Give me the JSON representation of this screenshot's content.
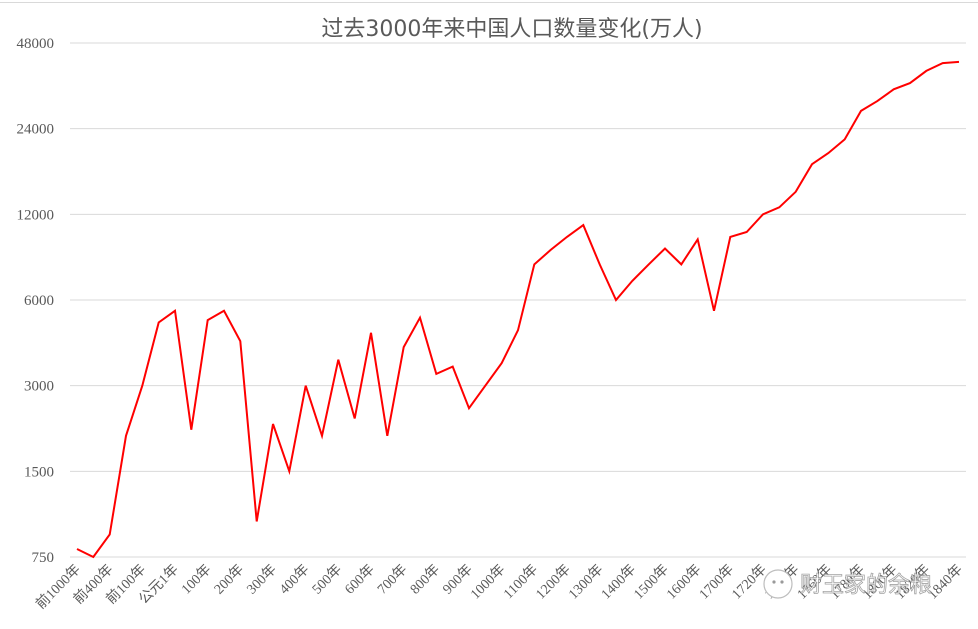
{
  "chart_data": {
    "type": "line",
    "title": "过去3000年来中国人口数量变化(万人)",
    "xlabel": "",
    "ylabel": "",
    "yscale": "log2",
    "ylim": [
      750,
      48000
    ],
    "yticks": [
      "48000",
      "24000",
      "12000",
      "6000",
      "3000",
      "1500",
      "750"
    ],
    "yticks_values": [
      48000,
      24000,
      12000,
      6000,
      3000,
      1500,
      750
    ],
    "grid": true,
    "legend": "none",
    "series_color": "#ff0000",
    "categories": [
      "前1000年",
      "",
      "前400年",
      "",
      "前100年",
      "",
      "公元1年",
      "",
      "100年",
      "",
      "200年",
      "",
      "300年",
      "",
      "400年",
      "",
      "500年",
      "",
      "600年",
      "",
      "700年",
      "",
      "800年",
      "",
      "900年",
      "",
      "1000年",
      "",
      "1100年",
      "",
      "1200年",
      "",
      "1300年",
      "",
      "1400年",
      "",
      "1500年",
      "",
      "1600年",
      "",
      "1700年",
      "",
      "1720年",
      "",
      "1740年",
      "",
      "1760年",
      "",
      "1780年",
      "",
      "1800年",
      "",
      "1820年",
      "",
      "1840年"
    ],
    "series": [
      {
        "name": "人口(万人)",
        "values": [
          800,
          750,
          900,
          2000,
          3000,
          5000,
          5500,
          2100,
          5100,
          5500,
          4300,
          1000,
          2200,
          1500,
          3000,
          2000,
          3700,
          2300,
          4600,
          2000,
          4100,
          5200,
          3300,
          3500,
          2500,
          3000,
          3600,
          4700,
          8000,
          9000,
          10000,
          11000,
          8000,
          6000,
          7000,
          8000,
          9100,
          8000,
          9800,
          5500,
          10000,
          10400,
          12000,
          12700,
          14400,
          18000,
          19700,
          22000,
          27700,
          30000,
          33000,
          34700,
          38300,
          40800,
          41200
        ]
      }
    ]
  },
  "watermark": {
    "text": "财玉家的余粮",
    "icon": "wechat-icon"
  }
}
